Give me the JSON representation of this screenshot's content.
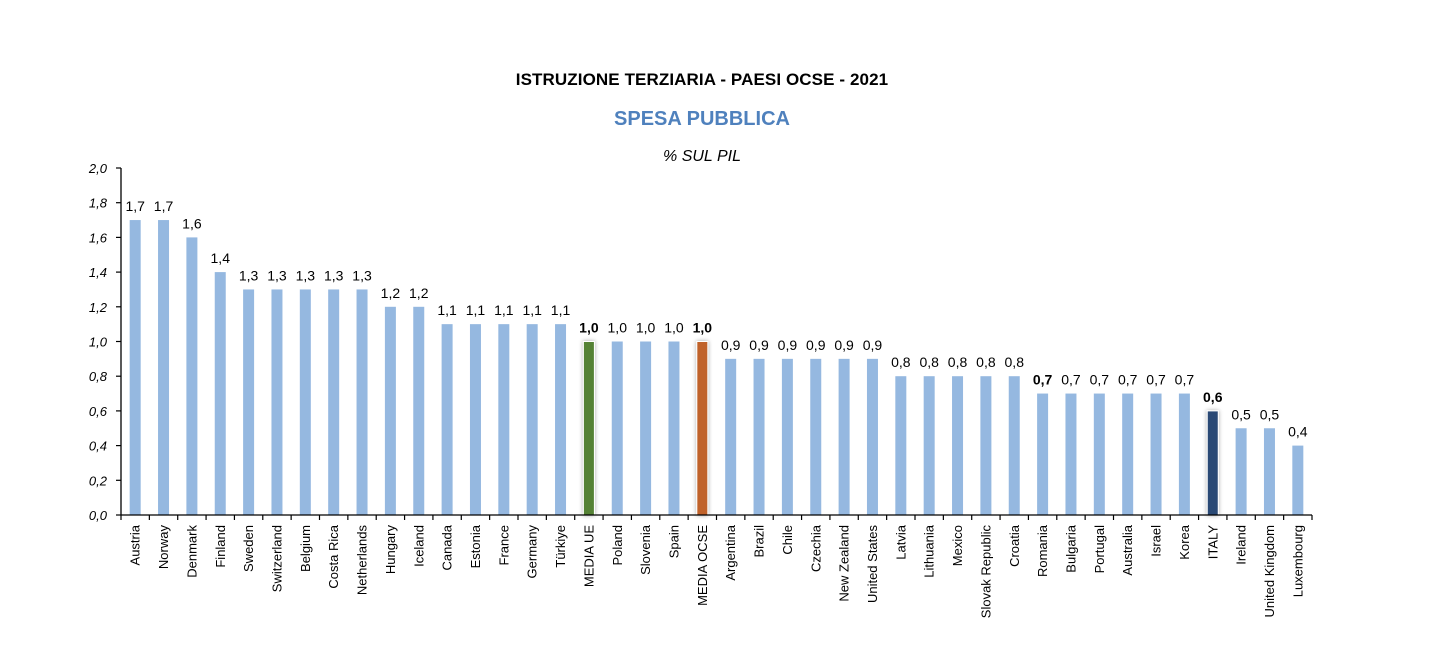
{
  "header": {
    "title": "ISTRUZIONE TERZIARIA - PAESI OCSE - 2021",
    "subtitle": "SPESA PUBBLICA",
    "unit": "% SUL PIL"
  },
  "colors": {
    "default_bar": "#95b8e0",
    "media_ue": "#548235",
    "media_ocse": "#c0622a",
    "italy": "#2c4a74",
    "subtitle": "#4f81bd"
  },
  "chart_data": {
    "type": "bar",
    "title": "ISTRUZIONE TERZIARIA - PAESI OCSE - 2021",
    "subtitle": "SPESA PUBBLICA",
    "xlabel": "",
    "ylabel": "% SUL PIL",
    "ylim": [
      0,
      2.0
    ],
    "yticks": [
      "0,0",
      "0,2",
      "0,4",
      "0,6",
      "0,8",
      "1,0",
      "1,2",
      "1,4",
      "1,6",
      "1,8",
      "2,0"
    ],
    "grid": false,
    "legend": null,
    "categories": [
      "Austria",
      "Norway",
      "Denmark",
      "Finland",
      "Sweden",
      "Switzerland",
      "Belgium",
      "Costa Rica",
      "Netherlands",
      "Hungary",
      "Iceland",
      "Canada",
      "Estonia",
      "France",
      "Germany",
      "Türkiye",
      "MEDIA UE",
      "Poland",
      "Slovenia",
      "Spain",
      "MEDIA OCSE",
      "Argentina",
      "Brazil",
      "Chile",
      "Czechia",
      "New Zealand",
      "United States",
      "Latvia",
      "Lithuania",
      "Mexico",
      "Slovak Republic",
      "Croatia",
      "Romania",
      "Bulgaria",
      "Portugal",
      "Australia",
      "Israel",
      "Korea",
      "ITALY",
      "Ireland",
      "United Kingdom",
      "Luxembourg"
    ],
    "values": [
      1.7,
      1.7,
      1.6,
      1.4,
      1.3,
      1.3,
      1.3,
      1.3,
      1.3,
      1.2,
      1.2,
      1.1,
      1.1,
      1.1,
      1.1,
      1.1,
      1.0,
      1.0,
      1.0,
      1.0,
      1.0,
      0.9,
      0.9,
      0.9,
      0.9,
      0.9,
      0.9,
      0.8,
      0.8,
      0.8,
      0.8,
      0.8,
      0.7,
      0.7,
      0.7,
      0.7,
      0.7,
      0.7,
      0.6,
      0.5,
      0.5,
      0.4
    ],
    "value_labels": [
      "1,7",
      "1,7",
      "1,6",
      "1,4",
      "1,3",
      "1,3",
      "1,3",
      "1,3",
      "1,3",
      "1,2",
      "1,2",
      "1,1",
      "1,1",
      "1,1",
      "1,1",
      "1,1",
      "1,0",
      "1,0",
      "1,0",
      "1,0",
      "1,0",
      "0,9",
      "0,9",
      "0,9",
      "0,9",
      "0,9",
      "0,9",
      "0,8",
      "0,8",
      "0,8",
      "0,8",
      "0,8",
      "0,7",
      "0,7",
      "0,7",
      "0,7",
      "0,7",
      "0,7",
      "0,6",
      "0,5",
      "0,5",
      "0,4"
    ],
    "highlights": {
      "MEDIA UE": {
        "bar": "#548235",
        "label": "#548235",
        "bold": true
      },
      "MEDIA OCSE": {
        "bar": "#c0622a",
        "label": "#c0622a",
        "bold": true
      },
      "ITALY": {
        "bar": "#2c4a74",
        "label": "#2c4a74",
        "bold": true
      },
      "Romania": {
        "bar": "#95b8e0",
        "label": "#2c4a74",
        "bold": true
      }
    }
  }
}
